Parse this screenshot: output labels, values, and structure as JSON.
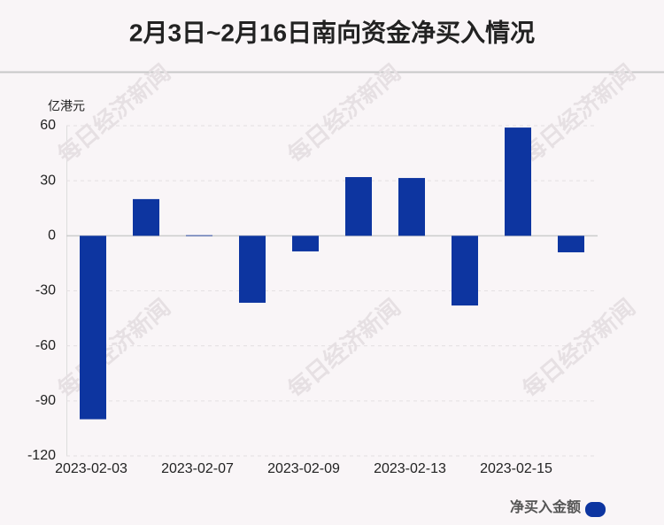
{
  "chart_data": {
    "type": "bar",
    "title": "2月3日~2月16日南向资金净买入情况",
    "y_unit": "亿港元",
    "watermark": "每日经济新闻",
    "categories": [
      "2023-02-03",
      null,
      "2023-02-07",
      null,
      "2023-02-09",
      null,
      "2023-02-13",
      null,
      "2023-02-15",
      null
    ],
    "series": [
      {
        "name": "净买入金额",
        "color": "#0d35a0",
        "values": [
          -100,
          20,
          0.3,
          -36.5,
          -8.5,
          32,
          31.5,
          -38,
          59,
          -9
        ]
      }
    ],
    "ylim": [
      -120,
      60
    ],
    "yticks": [
      -120,
      -90,
      -60,
      -30,
      0,
      30,
      60
    ],
    "grid": true
  }
}
